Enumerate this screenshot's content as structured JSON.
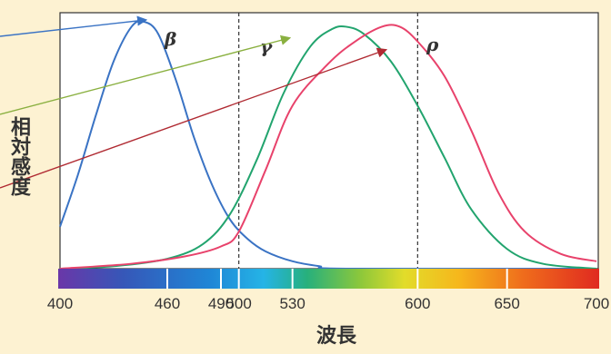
{
  "chart_data": {
    "type": "line",
    "xlabel": "波長",
    "ylabel": "相対感度",
    "xlim": [
      400,
      700
    ],
    "x_ticks": [
      400,
      460,
      490,
      500,
      530,
      600,
      650,
      700
    ],
    "reference_lines": [
      500,
      600
    ],
    "series": [
      {
        "name": "β",
        "color": "#3a73c4",
        "points": [
          [
            400,
            0.17
          ],
          [
            410,
            0.38
          ],
          [
            420,
            0.62
          ],
          [
            430,
            0.84
          ],
          [
            440,
            0.98
          ],
          [
            447,
            1.0
          ],
          [
            455,
            0.95
          ],
          [
            465,
            0.76
          ],
          [
            475,
            0.53
          ],
          [
            485,
            0.34
          ],
          [
            495,
            0.2
          ],
          [
            505,
            0.12
          ],
          [
            515,
            0.07
          ],
          [
            530,
            0.03
          ],
          [
            545,
            0.01
          ],
          [
            560,
            0.0
          ],
          [
            700,
            0.0
          ]
        ]
      },
      {
        "name": "γ",
        "color": "#22a46e",
        "points": [
          [
            400,
            0.0
          ],
          [
            430,
            0.01
          ],
          [
            460,
            0.04
          ],
          [
            480,
            0.1
          ],
          [
            495,
            0.22
          ],
          [
            510,
            0.44
          ],
          [
            525,
            0.71
          ],
          [
            540,
            0.9
          ],
          [
            552,
            0.97
          ],
          [
            560,
            0.98
          ],
          [
            570,
            0.95
          ],
          [
            585,
            0.84
          ],
          [
            600,
            0.66
          ],
          [
            615,
            0.45
          ],
          [
            630,
            0.24
          ],
          [
            650,
            0.08
          ],
          [
            670,
            0.02
          ],
          [
            700,
            0.0
          ]
        ]
      },
      {
        "name": "ρ",
        "color": "#e8426b",
        "points": [
          [
            400,
            0.0
          ],
          [
            440,
            0.02
          ],
          [
            470,
            0.05
          ],
          [
            490,
            0.09
          ],
          [
            500,
            0.15
          ],
          [
            515,
            0.4
          ],
          [
            530,
            0.66
          ],
          [
            550,
            0.83
          ],
          [
            565,
            0.92
          ],
          [
            580,
            0.98
          ],
          [
            590,
            0.98
          ],
          [
            600,
            0.92
          ],
          [
            615,
            0.78
          ],
          [
            630,
            0.56
          ],
          [
            645,
            0.31
          ],
          [
            660,
            0.15
          ],
          [
            680,
            0.06
          ],
          [
            700,
            0.03
          ]
        ]
      }
    ]
  },
  "annotation_colors": {
    "beta_arrow": "#3a73c4",
    "gamma_arrow": "#8ab040",
    "rho_arrow": "#b02a32"
  }
}
